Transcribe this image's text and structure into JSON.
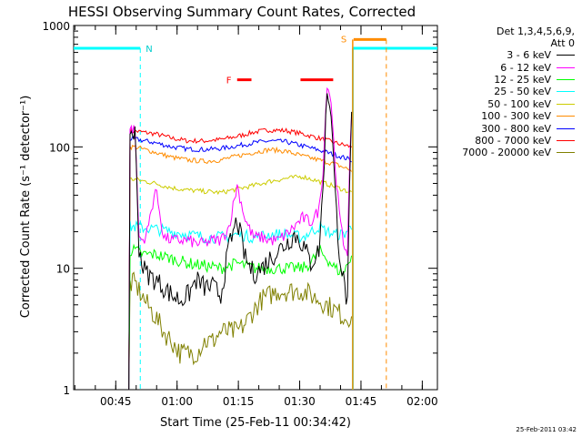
{
  "chart_data": {
    "type": "line",
    "title": "HESSI Observing Summary Count Rates, Corrected",
    "xlabel": "Start Time (25-Feb-11 00:34:42)",
    "ylabel": "Corrected Count Rate (s⁻¹ detector⁻¹)",
    "x_unit": "minutes after 00:34:42",
    "xlim": [
      0,
      89
    ],
    "ylim": [
      1,
      1000
    ],
    "yscale": "log",
    "x_ticks": [
      "00:45",
      "01:00",
      "01:15",
      "01:30",
      "01:45",
      "02:00"
    ],
    "y_ticks": [
      "1",
      "10",
      "100",
      "1000"
    ],
    "legend_header": [
      "Det 1,3,4,5,6,9,",
      "Att 0"
    ],
    "flag_labels": {
      "N": "N",
      "F": "F",
      "S": "S"
    },
    "attenuator_level": 650,
    "night_intervals": [
      [
        0,
        16.3
      ],
      [
        68.3,
        89
      ]
    ],
    "flare_intervals": [
      [
        40,
        43.5
      ],
      [
        55.5,
        63.5
      ]
    ],
    "saa_interval": [
      68.5,
      76.5
    ],
    "series": [
      {
        "name": "3 - 6 keV",
        "color": "#000000",
        "x": [
          13.5,
          15,
          16,
          17,
          18,
          20,
          22,
          24,
          26,
          28,
          30,
          32,
          34,
          36,
          38,
          40,
          42,
          44,
          46,
          48,
          50,
          52,
          54,
          56,
          58,
          60,
          61,
          62,
          63,
          64,
          65,
          66,
          67,
          67.5,
          68
        ],
        "y": [
          0,
          130,
          15,
          10,
          9,
          8,
          7,
          6,
          5.5,
          6,
          8,
          7,
          7,
          6,
          15,
          25,
          12,
          9,
          10,
          12,
          14,
          16,
          19,
          16,
          11,
          14,
          45,
          300,
          200,
          40,
          14,
          8,
          5,
          40,
          180
        ]
      },
      {
        "name": "6 - 12 keV",
        "color": "#ff00ff",
        "x": [
          13.5,
          15,
          16,
          17,
          18,
          20,
          21,
          22,
          24,
          26,
          28,
          30,
          32,
          34,
          36,
          38,
          40,
          42,
          44,
          46,
          48,
          50,
          52,
          54,
          56,
          58,
          60,
          61,
          62,
          63,
          64,
          65,
          66,
          67,
          67.5,
          68
        ],
        "y": [
          0,
          140,
          18,
          17,
          20,
          45,
          30,
          18,
          17,
          17,
          17,
          16,
          16,
          17,
          17,
          22,
          48,
          25,
          18,
          18,
          17,
          17,
          19,
          22,
          26,
          24,
          30,
          65,
          340,
          240,
          70,
          28,
          16,
          14,
          60,
          190
        ]
      },
      {
        "name": "12 - 25 keV",
        "color": "#00ff00",
        "x": [
          13.5,
          15,
          17,
          20,
          24,
          28,
          32,
          36,
          40,
          44,
          48,
          52,
          56,
          58,
          60,
          62,
          64,
          66,
          68
        ],
        "y": [
          0,
          14,
          13,
          13,
          12,
          11,
          10.5,
          10,
          11,
          10,
          10,
          10,
          10,
          11,
          14,
          12,
          10,
          9,
          13
        ]
      },
      {
        "name": "25 - 50 keV",
        "color": "#00ffff",
        "x": [
          13.5,
          15,
          20,
          24,
          28,
          32,
          36,
          40,
          44,
          48,
          52,
          56,
          60,
          62,
          64,
          66,
          68
        ],
        "y": [
          0,
          22,
          21,
          20,
          19,
          18,
          18,
          19,
          18,
          19,
          19,
          18,
          22,
          20,
          19,
          19,
          22
        ]
      },
      {
        "name": "50 - 100 keV",
        "color": "#cccc00",
        "x": [
          13.5,
          15,
          20,
          24,
          28,
          32,
          36,
          40,
          44,
          48,
          52,
          56,
          60,
          64,
          68
        ],
        "y": [
          0,
          54,
          50,
          46,
          44,
          43,
          42,
          45,
          48,
          52,
          55,
          57,
          52,
          47,
          42
        ]
      },
      {
        "name": "100 - 300 keV",
        "color": "#ff8c00",
        "x": [
          13.5,
          15,
          20,
          24,
          28,
          32,
          36,
          40,
          44,
          48,
          52,
          56,
          60,
          64,
          68
        ],
        "y": [
          0,
          100,
          90,
          82,
          78,
          76,
          78,
          84,
          90,
          95,
          92,
          84,
          78,
          72,
          64
        ]
      },
      {
        "name": "300 - 800 keV",
        "color": "#0000ff",
        "x": [
          13.5,
          15,
          20,
          24,
          28,
          32,
          36,
          40,
          44,
          48,
          52,
          56,
          60,
          64,
          68
        ],
        "y": [
          0,
          116,
          108,
          100,
          96,
          95,
          97,
          102,
          108,
          112,
          110,
          102,
          94,
          86,
          78
        ]
      },
      {
        "name": "800 - 7000 keV",
        "color": "#ff0000",
        "x": [
          13.5,
          15,
          20,
          24,
          28,
          32,
          36,
          40,
          44,
          48,
          52,
          56,
          60,
          64,
          68
        ],
        "y": [
          0,
          135,
          128,
          118,
          112,
          112,
          115,
          122,
          132,
          138,
          136,
          128,
          118,
          108,
          100
        ]
      },
      {
        "name": "7000 - 20000 keV",
        "color": "#808000",
        "x": [
          13.5,
          15,
          18,
          20,
          22,
          24,
          26,
          28,
          30,
          32,
          34,
          36,
          38,
          40,
          42,
          44,
          46,
          48,
          50,
          52,
          54,
          56,
          58,
          60,
          62,
          64,
          66,
          68
        ],
        "y": [
          0,
          7.5,
          5,
          4,
          3,
          2.5,
          2,
          2,
          2,
          2.5,
          2.5,
          3,
          3,
          3,
          3.5,
          4.5,
          5.5,
          6,
          6.5,
          6.5,
          6.5,
          6.5,
          6,
          5.5,
          5,
          4.5,
          4,
          4
        ]
      }
    ]
  },
  "timestamp": "25-Feb-2011 03:42"
}
